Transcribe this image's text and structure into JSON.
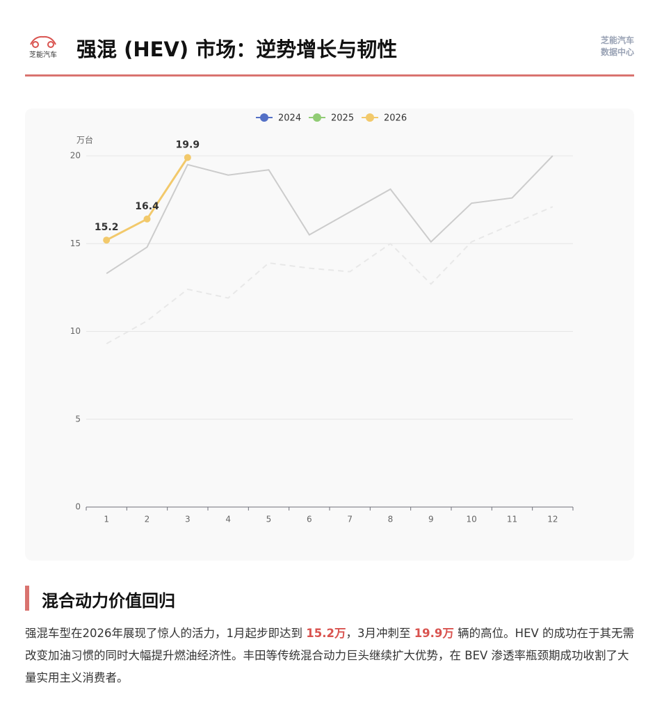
{
  "header": {
    "logo_text": "芝能汽车",
    "title": "强混 (HEV) 市场：逆势增长与韧性",
    "brand_line1": "芝能汽车",
    "brand_line2": "数据中心"
  },
  "chart_data": {
    "type": "line",
    "y_label": "万台",
    "categories": [
      1,
      2,
      3,
      4,
      5,
      6,
      7,
      8,
      9,
      10,
      11,
      12
    ],
    "series": [
      {
        "name": "2024",
        "color": "#5470c6",
        "line_color": "#e8e8e8",
        "line_style": "dashed",
        "values": [
          9.3,
          10.6,
          12.4,
          11.9,
          13.9,
          13.6,
          13.4,
          15.0,
          12.7,
          15.1,
          16.1,
          17.1
        ]
      },
      {
        "name": "2025",
        "color": "#91cc75",
        "line_color": "#cccccc",
        "line_style": "solid",
        "values": [
          13.3,
          14.8,
          19.5,
          18.9,
          19.2,
          15.5,
          16.8,
          18.1,
          15.1,
          17.3,
          17.6,
          20.0
        ]
      },
      {
        "name": "2026",
        "color": "#f2c96b",
        "line_color": "#f2c96b",
        "line_style": "solid",
        "show_labels": true,
        "values": [
          15.2,
          16.4,
          19.9,
          null,
          null,
          null,
          null,
          null,
          null,
          null,
          null,
          null
        ]
      }
    ],
    "ylim": [
      0,
      20
    ],
    "yticks": [
      0,
      5,
      10,
      15,
      20
    ],
    "grid": true,
    "legend": "top"
  },
  "section": {
    "title": "混合动力价值回归",
    "paragraph": [
      {
        "text": "强混车型在2026年展现了惊人的活力，1月起步即达到 ",
        "highlight": false
      },
      {
        "text": "15.2万",
        "highlight": true
      },
      {
        "text": "，3月冲刺至 ",
        "highlight": false
      },
      {
        "text": "19.9万",
        "highlight": true
      },
      {
        "text": " 辆的高位。HEV 的成功在于其无需改变加油习惯的同时大幅提升燃油经济性。丰田等传统混合动力巨头继续扩大优势，在 BEV 渗透率瓶颈期成功收割了大量实用主义消费者。",
        "highlight": false
      }
    ]
  }
}
